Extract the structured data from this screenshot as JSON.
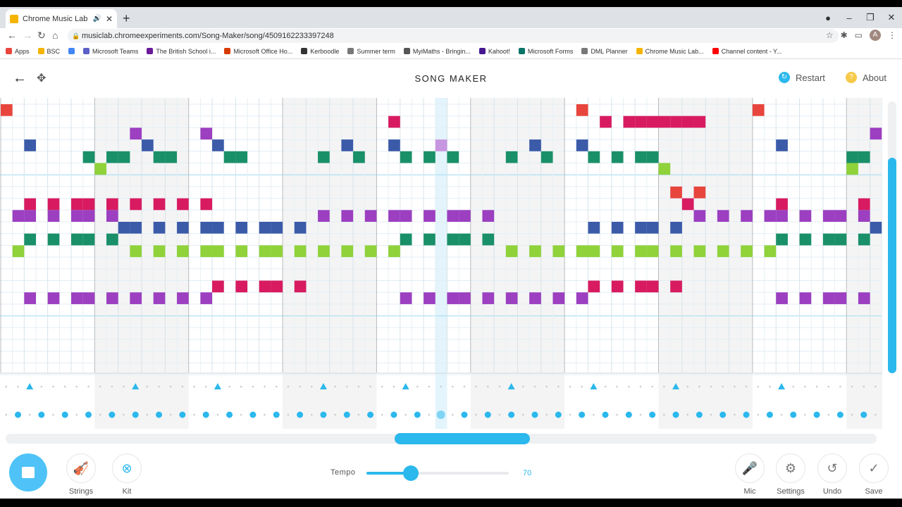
{
  "browser": {
    "tab_title": "Chrome Music Lab - Song M",
    "new_tab": "+",
    "url": "musiclab.chromeexperiments.com/Song-Maker/song/4509162233397248",
    "avatar": "A",
    "bookmarks": [
      {
        "label": "Apps",
        "color": "#e8453c"
      },
      {
        "label": "BSC",
        "color": "#f4b400"
      },
      {
        "label": "",
        "color": "#4285f4"
      },
      {
        "label": "Microsoft Teams",
        "color": "#5b5fc7"
      },
      {
        "label": "The British School i...",
        "color": "#6a1b9a"
      },
      {
        "label": "Microsoft Office Ho...",
        "color": "#d83b01"
      },
      {
        "label": "Kerboodle",
        "color": "#333333"
      },
      {
        "label": "Summer term",
        "color": "#777777"
      },
      {
        "label": "MyiMaths - Bringin...",
        "color": "#555555"
      },
      {
        "label": "Kahoot!",
        "color": "#46178f"
      },
      {
        "label": "Microsoft Forms",
        "color": "#077568"
      },
      {
        "label": "DML Planner",
        "color": "#777777"
      },
      {
        "label": "Chrome Music Lab...",
        "color": "#f4b400"
      },
      {
        "label": "Channel content - Y...",
        "color": "#ff0000"
      }
    ]
  },
  "app": {
    "title": "SONG MAKER",
    "restart_label": "Restart",
    "about_label": "About",
    "colors": {
      "accent": "#2bb8ec",
      "restart": "#2bb8ec",
      "about": "#f7c948"
    }
  },
  "grid": {
    "columns": 75,
    "rows": 23,
    "current_column": 37,
    "row_colors": [
      "#e8453c",
      "#d81b60",
      "#9c3fc0",
      "#3b5ba9",
      "#1a9068",
      "#8fd23a",
      "#f0b43c",
      "#e8453c",
      "#d81b60",
      "#9c3fc0",
      "#3b5ba9",
      "#1a9068",
      "#8fd23a",
      "#f0b43c",
      "#e8453c",
      "#d81b60",
      "#9c3fc0",
      "#3b5ba9",
      "#1a9068",
      "#8fd23a",
      "#f0b43c",
      "#e8453c",
      "#d81b60"
    ],
    "notes": [
      [
        0,
        0
      ],
      [
        49,
        0
      ],
      [
        64,
        0
      ],
      [
        33,
        1
      ],
      [
        51,
        1
      ],
      [
        53,
        1
      ],
      [
        54,
        1
      ],
      [
        55,
        1
      ],
      [
        56,
        1
      ],
      [
        57,
        1
      ],
      [
        58,
        1
      ],
      [
        59,
        1
      ],
      [
        11,
        2
      ],
      [
        17,
        2
      ],
      [
        74,
        2
      ],
      [
        2,
        3
      ],
      [
        12,
        3
      ],
      [
        18,
        3
      ],
      [
        29,
        3
      ],
      [
        33,
        3
      ],
      [
        37,
        3
      ],
      [
        45,
        3
      ],
      [
        49,
        3
      ],
      [
        66,
        3
      ],
      [
        7,
        4
      ],
      [
        9,
        4
      ],
      [
        10,
        4
      ],
      [
        13,
        4
      ],
      [
        14,
        4
      ],
      [
        19,
        4
      ],
      [
        20,
        4
      ],
      [
        27,
        4
      ],
      [
        30,
        4
      ],
      [
        34,
        4
      ],
      [
        36,
        4
      ],
      [
        38,
        4
      ],
      [
        43,
        4
      ],
      [
        46,
        4
      ],
      [
        50,
        4
      ],
      [
        52,
        4
      ],
      [
        54,
        4
      ],
      [
        55,
        4
      ],
      [
        72,
        4
      ],
      [
        73,
        4
      ],
      [
        8,
        5
      ],
      [
        56,
        5
      ],
      [
        72,
        5
      ],
      [
        57,
        7
      ],
      [
        59,
        7
      ],
      [
        2,
        8
      ],
      [
        4,
        8
      ],
      [
        6,
        8
      ],
      [
        7,
        8
      ],
      [
        9,
        8
      ],
      [
        11,
        8
      ],
      [
        13,
        8
      ],
      [
        15,
        8
      ],
      [
        17,
        8
      ],
      [
        58,
        8
      ],
      [
        66,
        8
      ],
      [
        73,
        8
      ],
      [
        1,
        9
      ],
      [
        2,
        9
      ],
      [
        4,
        9
      ],
      [
        6,
        9
      ],
      [
        7,
        9
      ],
      [
        9,
        9
      ],
      [
        27,
        9
      ],
      [
        29,
        9
      ],
      [
        31,
        9
      ],
      [
        33,
        9
      ],
      [
        34,
        9
      ],
      [
        36,
        9
      ],
      [
        38,
        9
      ],
      [
        39,
        9
      ],
      [
        41,
        9
      ],
      [
        59,
        9
      ],
      [
        61,
        9
      ],
      [
        63,
        9
      ],
      [
        65,
        9
      ],
      [
        66,
        9
      ],
      [
        68,
        9
      ],
      [
        70,
        9
      ],
      [
        71,
        9
      ],
      [
        73,
        9
      ],
      [
        10,
        10
      ],
      [
        11,
        10
      ],
      [
        13,
        10
      ],
      [
        15,
        10
      ],
      [
        17,
        10
      ],
      [
        18,
        10
      ],
      [
        20,
        10
      ],
      [
        22,
        10
      ],
      [
        23,
        10
      ],
      [
        25,
        10
      ],
      [
        50,
        10
      ],
      [
        52,
        10
      ],
      [
        54,
        10
      ],
      [
        55,
        10
      ],
      [
        57,
        10
      ],
      [
        74,
        10
      ],
      [
        2,
        11
      ],
      [
        4,
        11
      ],
      [
        6,
        11
      ],
      [
        7,
        11
      ],
      [
        9,
        11
      ],
      [
        34,
        11
      ],
      [
        36,
        11
      ],
      [
        38,
        11
      ],
      [
        39,
        11
      ],
      [
        41,
        11
      ],
      [
        66,
        11
      ],
      [
        68,
        11
      ],
      [
        70,
        11
      ],
      [
        71,
        11
      ],
      [
        73,
        11
      ],
      [
        1,
        12
      ],
      [
        11,
        12
      ],
      [
        13,
        12
      ],
      [
        15,
        12
      ],
      [
        17,
        12
      ],
      [
        18,
        12
      ],
      [
        20,
        12
      ],
      [
        22,
        12
      ],
      [
        23,
        12
      ],
      [
        25,
        12
      ],
      [
        27,
        12
      ],
      [
        29,
        12
      ],
      [
        31,
        12
      ],
      [
        33,
        12
      ],
      [
        43,
        12
      ],
      [
        45,
        12
      ],
      [
        47,
        12
      ],
      [
        49,
        12
      ],
      [
        50,
        12
      ],
      [
        52,
        12
      ],
      [
        54,
        12
      ],
      [
        55,
        12
      ],
      [
        57,
        12
      ],
      [
        59,
        12
      ],
      [
        61,
        12
      ],
      [
        63,
        12
      ],
      [
        65,
        12
      ],
      [
        18,
        15
      ],
      [
        20,
        15
      ],
      [
        22,
        15
      ],
      [
        23,
        15
      ],
      [
        25,
        15
      ],
      [
        50,
        15
      ],
      [
        52,
        15
      ],
      [
        54,
        15
      ],
      [
        55,
        15
      ],
      [
        57,
        15
      ],
      [
        2,
        16
      ],
      [
        4,
        16
      ],
      [
        6,
        16
      ],
      [
        7,
        16
      ],
      [
        9,
        16
      ],
      [
        11,
        16
      ],
      [
        13,
        16
      ],
      [
        15,
        16
      ],
      [
        17,
        16
      ],
      [
        34,
        16
      ],
      [
        36,
        16
      ],
      [
        38,
        16
      ],
      [
        39,
        16
      ],
      [
        41,
        16
      ],
      [
        43,
        16
      ],
      [
        45,
        16
      ],
      [
        47,
        16
      ],
      [
        49,
        16
      ],
      [
        66,
        16
      ],
      [
        68,
        16
      ],
      [
        70,
        16
      ],
      [
        71,
        16
      ],
      [
        73,
        16
      ]
    ],
    "accent_triangle_steps": [
      2,
      11,
      18,
      27,
      34,
      43,
      50,
      57,
      66
    ],
    "drum_dot_steps": [
      1,
      3,
      5,
      7,
      9,
      11,
      13,
      15,
      17,
      19,
      21,
      23,
      25,
      27,
      29,
      31,
      33,
      35,
      37,
      39,
      41,
      43,
      45,
      47,
      49,
      51,
      53,
      55,
      57,
      59,
      61,
      63,
      65,
      67,
      69,
      71,
      73
    ]
  },
  "controls": {
    "strings_label": "Strings",
    "kit_label": "Kit",
    "tempo_label": "Tempo",
    "tempo_value": "70",
    "tempo_fraction": 0.31,
    "mic_label": "Mic",
    "settings_label": "Settings",
    "undo_label": "Undo",
    "save_label": "Save"
  }
}
